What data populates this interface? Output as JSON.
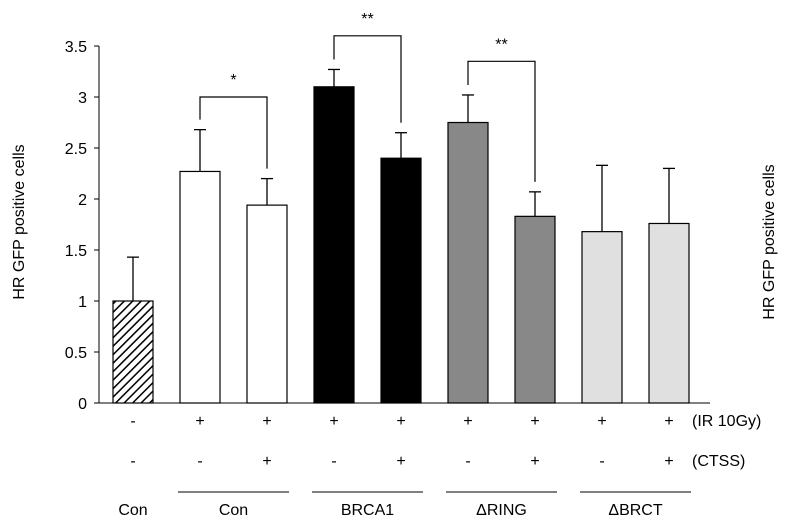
{
  "chart_data": {
    "type": "bar",
    "ylabel": "HR GFP positive cells",
    "ylabel_right": "HR GFP positive cells",
    "ylim": [
      0,
      3.5
    ],
    "yticks": [
      "0",
      "0.5",
      "1",
      "1.5",
      "2",
      "2.5",
      "3",
      "3.5"
    ],
    "bars": [
      {
        "value": 1.0,
        "error": 0.43,
        "fill": "hatched",
        "ir": "-",
        "ctss": "-"
      },
      {
        "value": 2.27,
        "error": 0.41,
        "fill": "#ffffff",
        "ir": "+",
        "ctss": "-"
      },
      {
        "value": 1.94,
        "error": 0.26,
        "fill": "#ffffff",
        "ir": "+",
        "ctss": "+"
      },
      {
        "value": 3.1,
        "error": 0.17,
        "fill": "#000000",
        "ir": "+",
        "ctss": "-"
      },
      {
        "value": 2.4,
        "error": 0.25,
        "fill": "#000000",
        "ir": "+",
        "ctss": "+"
      },
      {
        "value": 2.75,
        "error": 0.27,
        "fill": "#888888",
        "ir": "+",
        "ctss": "-"
      },
      {
        "value": 1.83,
        "error": 0.24,
        "fill": "#888888",
        "ir": "+",
        "ctss": "+"
      },
      {
        "value": 1.68,
        "error": 0.65,
        "fill": "#e0e0e0",
        "ir": "+",
        "ctss": "-"
      },
      {
        "value": 1.76,
        "error": 0.54,
        "fill": "#e0e0e0",
        "ir": "+",
        "ctss": "+"
      }
    ],
    "row_labels": [
      "(IR 10Gy)",
      "(CTSS)"
    ],
    "groups": [
      {
        "label": "Con",
        "bars": [
          0
        ],
        "underline": false
      },
      {
        "label": "Con",
        "bars": [
          1,
          2
        ],
        "underline": true
      },
      {
        "label": "BRCA1",
        "bars": [
          3,
          4
        ],
        "underline": true
      },
      {
        "label": "ΔRING",
        "bars": [
          5,
          6
        ],
        "underline": true
      },
      {
        "label": "ΔBRCT",
        "bars": [
          7,
          8
        ],
        "underline": true
      }
    ],
    "significance": [
      {
        "from": 1,
        "to": 2,
        "label": "*",
        "level": 3.0
      },
      {
        "from": 3,
        "to": 4,
        "label": "**",
        "level": 3.6
      },
      {
        "from": 5,
        "to": 6,
        "label": "**",
        "level": 3.35
      }
    ]
  }
}
